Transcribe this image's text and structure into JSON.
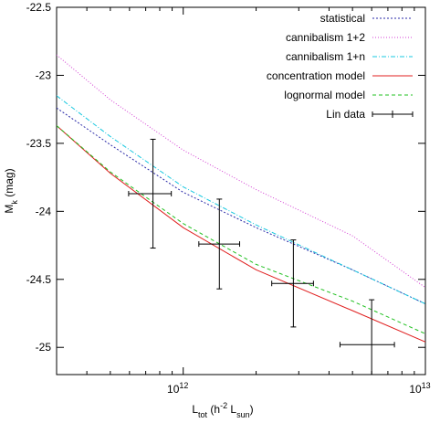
{
  "chart_data": {
    "type": "line",
    "xlabel": [
      {
        "text": "L"
      },
      {
        "text": "tot",
        "shift": "sub"
      },
      {
        "text": " (h"
      },
      {
        "text": "-2",
        "shift": "super"
      },
      {
        "text": " L"
      },
      {
        "text": "sun",
        "shift": "sub"
      },
      {
        "text": ")"
      }
    ],
    "ylabel": [
      {
        "text": "M"
      },
      {
        "text": "k",
        "shift": "sub"
      },
      {
        "text": " (mag)"
      }
    ],
    "xscale": "log",
    "xlim": [
      300000000000.0,
      10000000000000.0
    ],
    "xticks": [
      {
        "value": 1000000000000.0,
        "label": "10",
        "exponent": "12"
      },
      {
        "value": 10000000000000.0,
        "label": "10",
        "exponent": "13"
      }
    ],
    "xminor_ticks": [
      400000000000.0,
      500000000000.0,
      600000000000.0,
      700000000000.0,
      800000000000.0,
      900000000000.0,
      2000000000000.0,
      3000000000000.0,
      4000000000000.0,
      5000000000000.0,
      6000000000000.0,
      7000000000000.0,
      8000000000000.0,
      9000000000000.0
    ],
    "ylim": [
      -22.5,
      -25.2
    ],
    "yticks": [
      -22.5,
      -23,
      -23.5,
      -24,
      -24.5,
      -25
    ],
    "legend": "top-right",
    "x": [
      300000000000.0,
      500000000000.0,
      1000000000000.0,
      2000000000000.0,
      5000000000000.0,
      10000000000000.0
    ],
    "series": [
      {
        "name": "statistical",
        "color": "#2a2aa8",
        "dash": "2,2",
        "values": [
          -23.24,
          -23.51,
          -23.86,
          -24.12,
          -24.43,
          -24.68
        ]
      },
      {
        "name": "cannibalism 1+2",
        "color": "#d43fd4",
        "dash": "1,2",
        "values": [
          -22.85,
          -23.18,
          -23.55,
          -23.84,
          -24.18,
          -24.56
        ]
      },
      {
        "name": "cannibalism 1+n",
        "color": "#18c8e0",
        "dash": "5,2,1,2",
        "values": [
          -23.15,
          -23.45,
          -23.82,
          -24.1,
          -24.43,
          -24.68
        ]
      },
      {
        "name": "concentration model",
        "color": "#e02020",
        "dash": "",
        "values": [
          -23.37,
          -23.72,
          -24.12,
          -24.43,
          -24.73,
          -24.96
        ]
      },
      {
        "name": "lognormal model",
        "color": "#20c020",
        "dash": "4,3",
        "values": [
          -23.37,
          -23.71,
          -24.09,
          -24.39,
          -24.66,
          -24.9
        ]
      }
    ],
    "points": {
      "name": "Lin data",
      "color": "#000000",
      "x": [
        750000000000.0,
        1410000000000.0,
        2850000000000.0,
        6000000000000.0
      ],
      "y": [
        -23.87,
        -24.24,
        -24.53,
        -24.98
      ],
      "yerr": [
        0.4,
        0.33,
        0.32,
        0.33
      ],
      "xlow": [
        595000000000.0,
        1160000000000.0,
        2320000000000.0,
        4440000000000.0
      ],
      "xhigh": [
        893000000000.0,
        1710000000000.0,
        3450000000000.0,
        7450000000000.0
      ]
    }
  }
}
